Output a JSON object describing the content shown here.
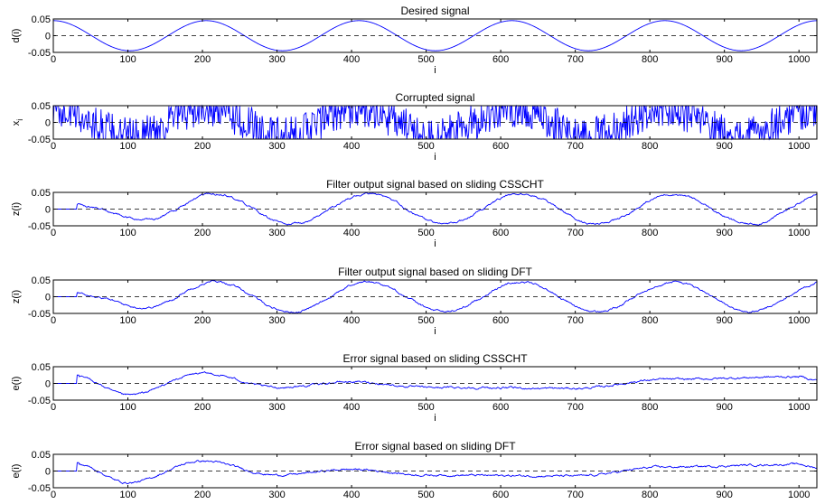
{
  "colors": {
    "signal": "#0000ff",
    "axes": "#000000",
    "zero_line": "#000000",
    "background": "#ffffff"
  },
  "chart_data": [
    {
      "type": "line",
      "title": "Desired signal",
      "xlabel": "i",
      "ylabel": "d(i)",
      "xlim": [
        0,
        1024
      ],
      "ylim": [
        -0.05,
        0.05
      ],
      "xticks": [
        "0",
        "100",
        "200",
        "300",
        "400",
        "500",
        "600",
        "700",
        "800",
        "900",
        "1000"
      ],
      "yticks": [
        "0.05",
        "0",
        "-0.05"
      ],
      "reference_line_y": 0,
      "series": [
        {
          "waveform": "sine",
          "amplitude": 0.045,
          "period": 205,
          "peaks_at": [
            0,
            205,
            410,
            615,
            820,
            1024
          ],
          "troughs_at": [
            102,
            307,
            512,
            717,
            922
          ],
          "noise": 0
        }
      ]
    },
    {
      "type": "line",
      "title": "Corrupted signal",
      "xlabel": "i",
      "ylabel": "x_i",
      "ylabel_main": "x",
      "ylabel_sub": "i",
      "xlim": [
        0,
        1024
      ],
      "ylim": [
        -0.05,
        0.05
      ],
      "xticks": [
        "0",
        "100",
        "200",
        "300",
        "400",
        "500",
        "600",
        "700",
        "800",
        "900",
        "1000"
      ],
      "yticks": [
        "0.05",
        "0",
        "-0.05"
      ],
      "reference_line_y": 0,
      "series": [
        {
          "waveform": "sine",
          "amplitude": 0.045,
          "period": 205,
          "noise": 0.06,
          "clipped": true,
          "start": 0
        }
      ]
    },
    {
      "type": "line",
      "title": "Filter output signal based on sliding CSSCHT",
      "xlabel": "i",
      "ylabel": "z(i)",
      "xlim": [
        0,
        1024
      ],
      "ylim": [
        -0.05,
        0.05
      ],
      "xticks": [
        "0",
        "100",
        "200",
        "300",
        "400",
        "500",
        "600",
        "700",
        "800",
        "900",
        "1000"
      ],
      "yticks": [
        "0.05",
        "0",
        "-0.05"
      ],
      "reference_line_y": 0,
      "series": [
        {
          "waveform": "sine",
          "amplitude": 0.045,
          "period": 205,
          "start": 32,
          "phase_shift": 12,
          "noise": 0.004
        }
      ]
    },
    {
      "type": "line",
      "title": "Filter output signal based on sliding DFT",
      "xlabel": "i",
      "ylabel": "z(i)",
      "xlim": [
        0,
        1024
      ],
      "ylim": [
        -0.05,
        0.05
      ],
      "xticks": [
        "0",
        "100",
        "200",
        "300",
        "400",
        "500",
        "600",
        "700",
        "800",
        "900",
        "1000"
      ],
      "yticks": [
        "0.05",
        "0",
        "-0.05"
      ],
      "reference_line_y": 0,
      "series": [
        {
          "waveform": "sine",
          "amplitude": 0.045,
          "period": 205,
          "start": 32,
          "phase_shift": 12,
          "noise": 0.004
        }
      ]
    },
    {
      "type": "line",
      "title": "Error signal based on sliding CSSCHT",
      "xlabel": "i",
      "ylabel": "e(i)",
      "xlim": [
        0,
        1024
      ],
      "ylim": [
        -0.05,
        0.05
      ],
      "xticks": [
        "0",
        "100",
        "200",
        "300",
        "400",
        "500",
        "600",
        "700",
        "800",
        "900",
        "1000"
      ],
      "yticks": [
        "0.05",
        "0",
        "-0.05"
      ],
      "reference_line_y": 0,
      "series": [
        {
          "waveform": "error",
          "start": 32,
          "spike": 0.025,
          "envelope": [
            [
              32,
              0.02
            ],
            [
              100,
              -0.035
            ],
            [
              200,
              0.03
            ],
            [
              300,
              -0.012
            ],
            [
              400,
              0.005
            ],
            [
              500,
              -0.012
            ],
            [
              700,
              -0.015
            ],
            [
              820,
              0.012
            ],
            [
              1000,
              0.02
            ],
            [
              1024,
              0.01
            ]
          ],
          "noise": 0.004
        }
      ]
    },
    {
      "type": "line",
      "title": "Error signal based on sliding DFT",
      "xlabel": "",
      "ylabel": "e(i)",
      "xlim": [
        0,
        1024
      ],
      "ylim": [
        -0.05,
        0.05
      ],
      "xticks": [
        "0",
        "100",
        "200",
        "300",
        "400",
        "500",
        "600",
        "700",
        "800",
        "900",
        "1000"
      ],
      "yticks": [
        "0.05",
        "0",
        "-0.05"
      ],
      "reference_line_y": 0,
      "series": [
        {
          "waveform": "error",
          "start": 32,
          "spike": 0.025,
          "envelope": [
            [
              32,
              0.02
            ],
            [
              100,
              -0.035
            ],
            [
              200,
              0.03
            ],
            [
              300,
              -0.012
            ],
            [
              400,
              0.005
            ],
            [
              500,
              -0.012
            ],
            [
              700,
              -0.015
            ],
            [
              820,
              0.012
            ],
            [
              1000,
              0.02
            ],
            [
              1024,
              0.01
            ]
          ],
          "noise": 0.004
        }
      ]
    }
  ]
}
